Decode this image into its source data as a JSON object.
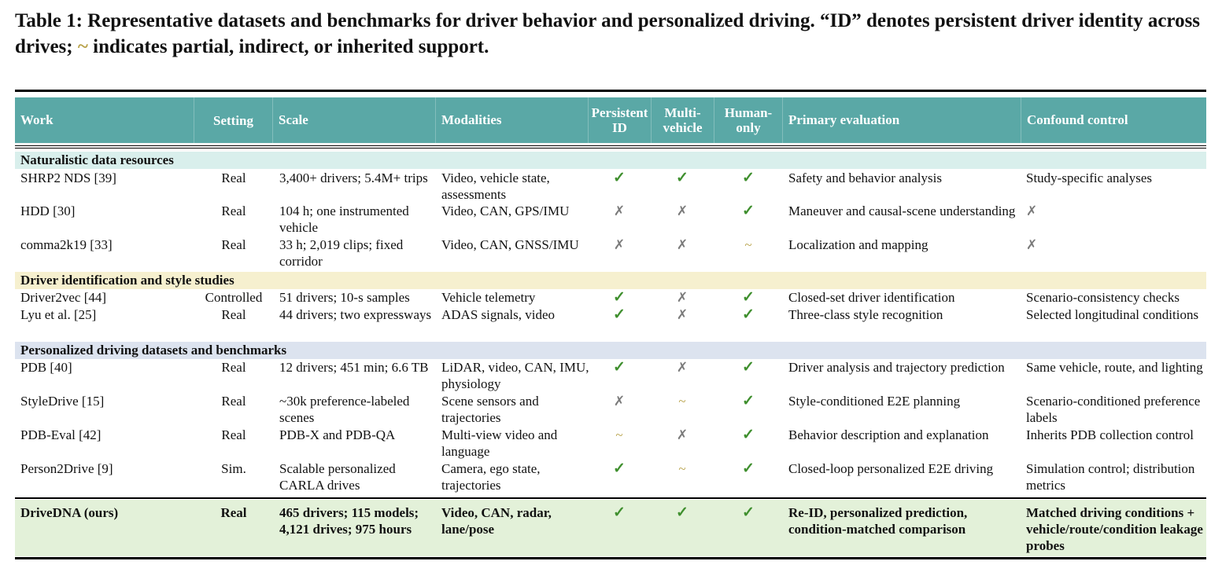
{
  "caption": {
    "part1": "Table 1: Representative datasets and benchmarks for driver behavior and personalized driving. “ID” denotes persistent driver identity across drives;",
    "tilde": "~",
    "part2": "indicates partial, indirect, or inherited support."
  },
  "columns": {
    "work": "Work",
    "setting": "Setting",
    "scale": "Scale",
    "modalities": "Modalities",
    "persistent_id_1": "Persistent",
    "persistent_id_2": "ID",
    "multi_vehicle_1": "Multi-",
    "multi_vehicle_2": "vehicle",
    "human_only_1": "Human-",
    "human_only_2": "only",
    "primary_evaluation": "Primary evaluation",
    "confound_control": "Confound control"
  },
  "symbols": {
    "yes": "✓",
    "no": "✗",
    "partial": "~"
  },
  "colors": {
    "header_bg": "#5aa8a6",
    "section_naturalistic": "#d9efec",
    "section_identification": "#f6f0cf",
    "section_personalized": "#dce3ef",
    "final_row_bg": "#e3f1d9",
    "check": "#3f8f2e",
    "cross": "#7a7a7a",
    "partial": "#b8a24a"
  },
  "sections": [
    {
      "title": "Naturalistic data resources",
      "rows": [
        {
          "work": "SHRP2 NDS [39]",
          "setting": "Real",
          "scale": "3,400+ drivers; 5.4M+ trips",
          "modalities": "Video, vehicle state, assessments",
          "pid": "yes",
          "mv": "yes",
          "ho": "yes",
          "eval": "Safety and behavior analysis",
          "confound": "Study-specific analyses"
        },
        {
          "work": "HDD [30]",
          "setting": "Real",
          "scale": "104 h; one instrumented vehicle",
          "modalities": "Video, CAN, GPS/IMU",
          "pid": "no",
          "mv": "no",
          "ho": "yes",
          "eval": "Maneuver and causal-scene understanding",
          "confound": "✗"
        },
        {
          "work": "comma2k19 [33]",
          "setting": "Real",
          "scale": "33 h; 2,019 clips; fixed corridor",
          "modalities": "Video, CAN, GNSS/IMU",
          "pid": "no",
          "mv": "no",
          "ho": "partial",
          "eval": "Localization and mapping",
          "confound": "✗"
        }
      ]
    },
    {
      "title": "Driver identification and style studies",
      "rows": [
        {
          "work": "Driver2vec [44]",
          "setting": "Controlled",
          "scale": "51 drivers; 10-s samples",
          "modalities": "Vehicle telemetry",
          "pid": "yes",
          "mv": "no",
          "ho": "yes",
          "eval": "Closed-set driver identification",
          "confound": "Scenario-consistency checks"
        },
        {
          "work": "Lyu et al. [25]",
          "setting": "Real",
          "scale": "44 drivers; two expressways",
          "modalities": "ADAS signals, video",
          "pid": "yes",
          "mv": "no",
          "ho": "yes",
          "eval": "Three-class style recognition",
          "confound": "Selected longitudinal conditions"
        }
      ]
    },
    {
      "title": "Personalized driving datasets and benchmarks",
      "rows": [
        {
          "work": "PDB [40]",
          "setting": "Real",
          "scale": "12 drivers; 451 min; 6.6 TB",
          "modalities": "LiDAR, video, CAN, IMU, physiology",
          "pid": "yes",
          "mv": "no",
          "ho": "yes",
          "eval": "Driver analysis and trajectory prediction",
          "confound": "Same vehicle, route, and lighting"
        },
        {
          "work": "StyleDrive [15]",
          "setting": "Real",
          "scale": "~30k preference-labeled scenes",
          "modalities": "Scene sensors and trajectories",
          "pid": "no",
          "mv": "partial",
          "ho": "yes",
          "eval": "Style-conditioned E2E planning",
          "confound": "Scenario-conditioned preference labels"
        },
        {
          "work": "PDB-Eval [42]",
          "setting": "Real",
          "scale": "PDB-X and PDB-QA",
          "modalities": "Multi-view video and language",
          "pid": "partial",
          "mv": "no",
          "ho": "yes",
          "eval": "Behavior description and explanation",
          "confound": "Inherits PDB collection control"
        },
        {
          "work": "Person2Drive [9]",
          "setting": "Sim.",
          "scale": "Scalable personalized CARLA drives",
          "modalities": "Camera, ego state, trajectories",
          "pid": "yes",
          "mv": "partial",
          "ho": "yes",
          "eval": "Closed-loop personalized E2E driving",
          "confound": "Simulation control; distribution metrics"
        }
      ]
    }
  ],
  "final_row": {
    "work": "DriveDNA (ours)",
    "setting": "Real",
    "scale": "465 drivers; 115 models; 4,121 drives; 975 hours",
    "modalities": "Video, CAN, radar, lane/pose",
    "pid": "yes",
    "mv": "yes",
    "ho": "yes",
    "eval": "Re-ID, personalized prediction, condition-matched comparison",
    "confound": "Matched driving conditions + vehicle/route/condition leakage probes"
  }
}
